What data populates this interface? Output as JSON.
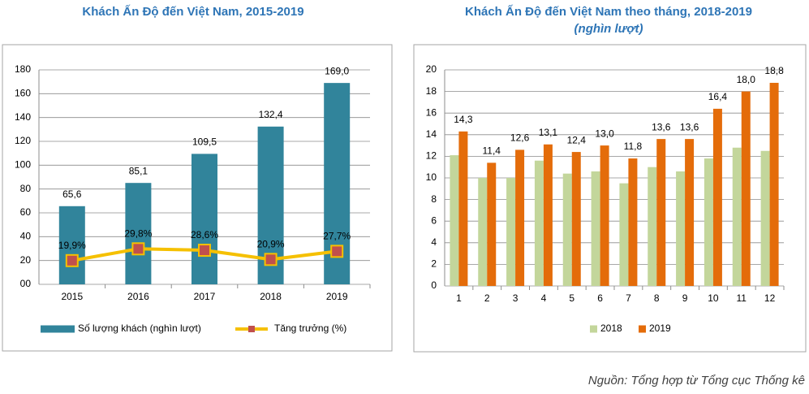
{
  "chart_data": [
    {
      "type": "combo",
      "title": "Khách Ấn Độ đến Việt Nam, 2015-2019",
      "categories": [
        "2015",
        "2016",
        "2017",
        "2018",
        "2019"
      ],
      "ylim": [
        0,
        180
      ],
      "yticks": [
        {
          "value": 0,
          "label": "00"
        },
        20,
        40,
        60,
        80,
        100,
        120,
        140,
        160,
        180
      ],
      "grid": true,
      "series": [
        {
          "name": "Số lượng khách (nghìn lượt)",
          "type": "bar",
          "color": "#31849b",
          "values": [
            65.6,
            85.1,
            109.5,
            132.4,
            169.0
          ],
          "value_labels": [
            "65,6",
            "85,1",
            "109,5",
            "132,4",
            "169,0"
          ]
        },
        {
          "name": "Tăng trưởng (%)",
          "type": "line",
          "color": "#f5c000",
          "marker_color": "#c0504d",
          "values": [
            19.9,
            29.8,
            28.6,
            20.9,
            27.7
          ],
          "value_labels": [
            "19,9%",
            "29,8%",
            "28,6%",
            "20,9%",
            "27,7%"
          ]
        }
      ]
    },
    {
      "type": "bar",
      "title": "Khách Ấn Độ đến Việt Nam theo tháng, 2018-2019",
      "subtitle": "(nghìn lượt)",
      "categories": [
        "1",
        "2",
        "3",
        "4",
        "5",
        "6",
        "7",
        "8",
        "9",
        "10",
        "11",
        "12"
      ],
      "ylim": [
        0,
        20
      ],
      "yticks": [
        0,
        2,
        4,
        6,
        8,
        10,
        12,
        14,
        16,
        18,
        20
      ],
      "grid": true,
      "series": [
        {
          "name": "2018",
          "type": "bar",
          "color": "#c3d69b",
          "values": [
            12.1,
            10.0,
            10.0,
            11.6,
            10.4,
            10.6,
            9.5,
            11.0,
            10.6,
            11.8,
            12.8,
            12.5
          ]
        },
        {
          "name": "2019",
          "type": "bar",
          "color": "#e46c0a",
          "values": [
            14.3,
            11.4,
            12.6,
            13.1,
            12.4,
            13.0,
            11.8,
            13.6,
            13.6,
            16.4,
            18.0,
            18.8
          ],
          "value_labels": [
            "14,3",
            "11,4",
            "12,6",
            "13,1",
            "12,4",
            "13,0",
            "11,8",
            "13,6",
            "13,6",
            "16,4",
            "18,0",
            "18,8"
          ]
        }
      ]
    }
  ],
  "source": "Nguồn: Tổng hợp từ Tổng cục Thống kê"
}
